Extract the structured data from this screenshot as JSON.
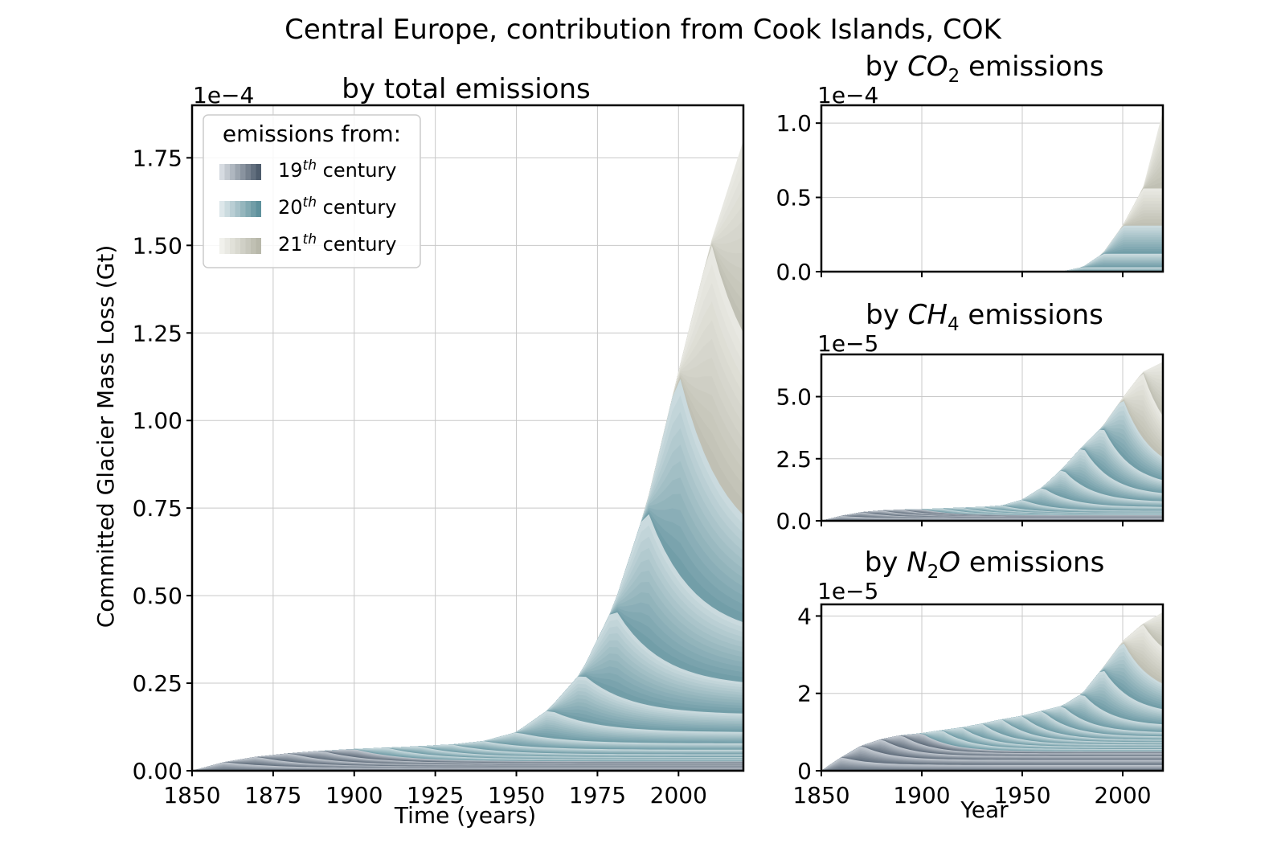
{
  "figure": {
    "title": "Central Europe, contribution from Cook Islands, COK"
  },
  "colors": {
    "century_19": [
      "#d6dbe1",
      "#4f5d6d"
    ],
    "century_20": [
      "#dde7ea",
      "#5f919c"
    ],
    "century_21": [
      "#f1f1ec",
      "#b8b8aa"
    ],
    "grid": "#c8c8c8"
  },
  "legend": {
    "title": "emissions from:",
    "entries": [
      {
        "base": "19",
        "sup": "th",
        "suffix": " century",
        "colors": [
          "#d6dbe1",
          "#4f5d6d"
        ]
      },
      {
        "base": "20",
        "sup": "th",
        "suffix": " century",
        "colors": [
          "#dde7ea",
          "#5f919c"
        ]
      },
      {
        "base": "21",
        "sup": "th",
        "suffix": " century",
        "colors": [
          "#f1f1ec",
          "#b8b8aa"
        ]
      }
    ]
  },
  "chart_data": [
    {
      "id": "total",
      "type": "area",
      "title": "by total emissions",
      "xlabel": "Time (years)",
      "ylabel": "Committed Glacier Mass Loss (Gt)",
      "scale_label": "1e−4",
      "xlim": [
        1850,
        2020
      ],
      "ylim": [
        0,
        1.9
      ],
      "xticks": [
        1850,
        1875,
        1900,
        1925,
        1950,
        1975,
        2000
      ],
      "xtick_labels": [
        "1850",
        "1875",
        "1900",
        "1925",
        "1950",
        "1975",
        "2000"
      ],
      "yticks": [
        0,
        0.25,
        0.5,
        0.75,
        1.0,
        1.25,
        1.5,
        1.75
      ],
      "ytick_labels": [
        "0.00",
        "0.25",
        "0.50",
        "0.75",
        "1.00",
        "1.25",
        "1.50",
        "1.75"
      ],
      "grid": true,
      "legend": "top-left",
      "envelope_x": [
        1850,
        1860,
        1870,
        1880,
        1890,
        1900,
        1910,
        1920,
        1930,
        1940,
        1950,
        1960,
        1970,
        1980,
        1990,
        2000,
        2010,
        2020
      ],
      "envelope_y": [
        0,
        0.025,
        0.04,
        0.05,
        0.057,
        0.062,
        0.066,
        0.07,
        0.075,
        0.085,
        0.11,
        0.175,
        0.28,
        0.47,
        0.755,
        1.14,
        1.51,
        1.8
      ],
      "tail_y": [
        0.004,
        0.008,
        0.012,
        0.017,
        0.022,
        0.027,
        0.033,
        0.039,
        0.047,
        0.06,
        0.078,
        0.11,
        0.16,
        0.24,
        0.38,
        0.6,
        1.0,
        1.8
      ]
    },
    {
      "id": "co2",
      "type": "area",
      "title_prefix": "by ",
      "title_chem": "CO",
      "title_sub": "2",
      "title_suffix": " emissions",
      "scale_label": "1e−4",
      "xlim": [
        1850,
        2020
      ],
      "ylim": [
        0,
        1.12
      ],
      "xticks": [
        1850,
        1900,
        1950,
        2000
      ],
      "yticks": [
        0,
        0.5,
        1.0
      ],
      "ytick_labels": [
        "0.0",
        "0.5",
        "1.0"
      ],
      "grid": true,
      "envelope_x": [
        1850,
        1960,
        1970,
        1980,
        1990,
        2000,
        2010,
        2020
      ],
      "envelope_y": [
        0,
        0,
        0.001,
        0.03,
        0.12,
        0.31,
        0.56,
        1.08
      ],
      "tail_y": [
        0,
        0,
        0.001,
        0.03,
        0.12,
        0.31,
        0.56,
        1.08
      ]
    },
    {
      "id": "ch4",
      "type": "area",
      "title_prefix": "by ",
      "title_chem": "CH",
      "title_sub": "4",
      "title_suffix": " emissions",
      "scale_label": "1e−5",
      "xlim": [
        1850,
        2020
      ],
      "ylim": [
        0,
        6.7
      ],
      "xticks": [
        1850,
        1900,
        1950,
        2000
      ],
      "yticks": [
        0,
        2.5,
        5.0
      ],
      "ytick_labels": [
        "0.0",
        "2.5",
        "5.0"
      ],
      "grid": true,
      "envelope_x": [
        1850,
        1860,
        1870,
        1880,
        1890,
        1900,
        1910,
        1920,
        1930,
        1940,
        1950,
        1960,
        1970,
        1980,
        1990,
        2000,
        2010,
        2020
      ],
      "envelope_y": [
        0,
        0.2,
        0.35,
        0.42,
        0.45,
        0.47,
        0.5,
        0.53,
        0.56,
        0.62,
        0.85,
        1.35,
        2.1,
        3.0,
        3.8,
        4.95,
        6.0,
        6.4
      ],
      "tail_y": [
        0.05,
        0.1,
        0.14,
        0.18,
        0.2,
        0.22,
        0.25,
        0.27,
        0.3,
        0.33,
        0.4,
        0.55,
        0.75,
        1.0,
        1.35,
        1.8,
        2.5,
        4.0
      ]
    },
    {
      "id": "n2o",
      "type": "area",
      "title_prefix": "by ",
      "title_chem": "N",
      "title_sub": "2",
      "title_chem2": "O",
      "title_suffix": " emissions",
      "scale_label": "1e−5",
      "xlabel": "Year",
      "xlim": [
        1850,
        2020
      ],
      "ylim": [
        0,
        4.3
      ],
      "xticks": [
        1850,
        1900,
        1950,
        2000
      ],
      "xtick_labels": [
        "1850",
        "1900",
        "1950",
        "2000"
      ],
      "yticks": [
        0,
        2,
        4
      ],
      "ytick_labels": [
        "0",
        "2",
        "4"
      ],
      "grid": true,
      "envelope_x": [
        1850,
        1860,
        1870,
        1880,
        1890,
        1900,
        1910,
        1920,
        1930,
        1940,
        1950,
        1960,
        1970,
        1980,
        1990,
        2000,
        2010,
        2020
      ],
      "envelope_y": [
        0,
        0.35,
        0.65,
        0.82,
        0.92,
        0.97,
        1.05,
        1.12,
        1.22,
        1.33,
        1.42,
        1.55,
        1.68,
        2.0,
        2.65,
        3.35,
        3.8,
        4.1
      ],
      "tail_y": [
        0.05,
        0.15,
        0.28,
        0.38,
        0.45,
        0.5,
        0.56,
        0.62,
        0.68,
        0.74,
        0.8,
        0.88,
        0.98,
        1.15,
        1.45,
        1.9,
        2.6,
        4.1
      ]
    }
  ]
}
